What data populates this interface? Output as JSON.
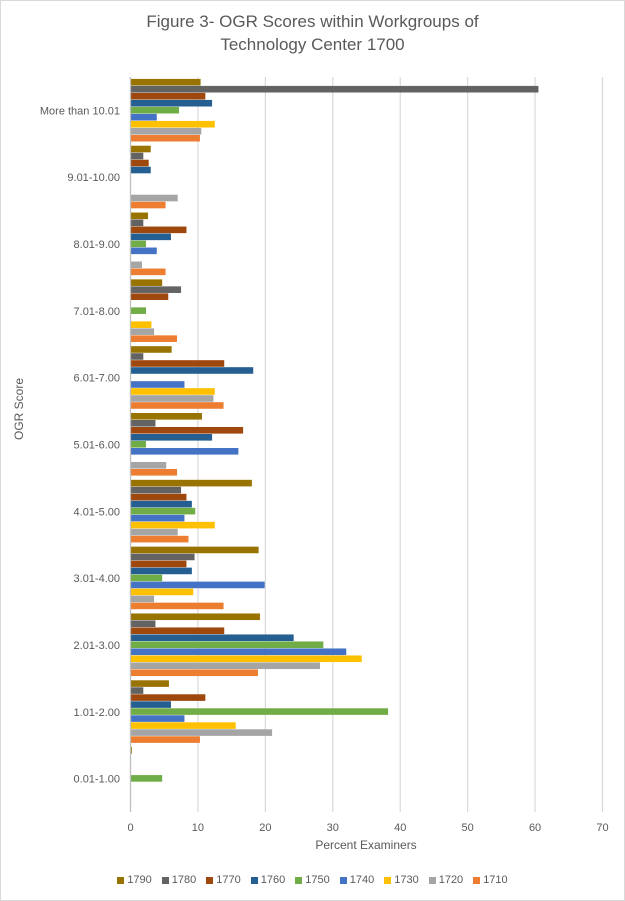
{
  "chart_data": {
    "type": "bar",
    "orientation": "horizontal",
    "title": "Figure 3- OGR Scores within Workgroups of Technology Center 1700",
    "title_lines": [
      "Figure 3- OGR Scores within Workgroups of",
      "Technology Center 1700"
    ],
    "xlabel": "Percent Examiners",
    "ylabel": "OGR Score",
    "xlim": [
      0,
      70
    ],
    "xticks": [
      0,
      10,
      20,
      30,
      40,
      50,
      60,
      70
    ],
    "grid": true,
    "legend_position": "bottom",
    "categories": [
      "More than 10.01",
      "9.01-10.00",
      "8.01-9.00",
      "7.01-8.00",
      "6.01-7.00",
      "5.01-6.00",
      "4.01-5.00",
      "3.01-4.00",
      "2.01-3.00",
      "1.01-2.00",
      "0.01-1.00"
    ],
    "series": [
      {
        "name": "1790",
        "color": "#997300",
        "values": [
          10.4,
          3.0,
          2.6,
          4.7,
          6.1,
          10.6,
          18.0,
          19.0,
          19.2,
          5.7,
          0.2
        ]
      },
      {
        "name": "1780",
        "color": "#636363",
        "values": [
          60.5,
          1.9,
          1.9,
          7.5,
          1.9,
          3.7,
          7.5,
          9.5,
          3.7,
          1.9,
          0
        ]
      },
      {
        "name": "1770",
        "color": "#9e480e",
        "values": [
          11.1,
          2.7,
          8.3,
          5.6,
          13.9,
          16.7,
          8.3,
          8.3,
          13.9,
          11.1,
          0
        ]
      },
      {
        "name": "1760",
        "color": "#255e91",
        "values": [
          12.1,
          3.0,
          6.0,
          0,
          18.2,
          12.1,
          9.1,
          9.1,
          24.2,
          6.0,
          0
        ]
      },
      {
        "name": "1750",
        "color": "#70ad47",
        "values": [
          7.2,
          0,
          2.3,
          2.3,
          0,
          2.3,
          9.6,
          4.7,
          28.6,
          38.2,
          4.7
        ]
      },
      {
        "name": "1740",
        "color": "#4472c4",
        "values": [
          3.9,
          0,
          3.9,
          0,
          8.0,
          16.0,
          8.0,
          19.9,
          32.0,
          8.0,
          0
        ]
      },
      {
        "name": "1730",
        "color": "#ffc000",
        "values": [
          12.5,
          0,
          0,
          3.1,
          12.5,
          0,
          12.5,
          9.3,
          34.3,
          15.6,
          0
        ]
      },
      {
        "name": "1720",
        "color": "#a5a5a5",
        "values": [
          10.5,
          7.0,
          1.7,
          3.5,
          12.3,
          5.3,
          7.0,
          3.5,
          28.1,
          21.0,
          0
        ]
      },
      {
        "name": "1710",
        "color": "#ed7d31",
        "values": [
          10.3,
          5.2,
          5.2,
          6.9,
          13.8,
          6.9,
          8.6,
          13.8,
          18.9,
          10.3,
          0
        ]
      }
    ]
  }
}
